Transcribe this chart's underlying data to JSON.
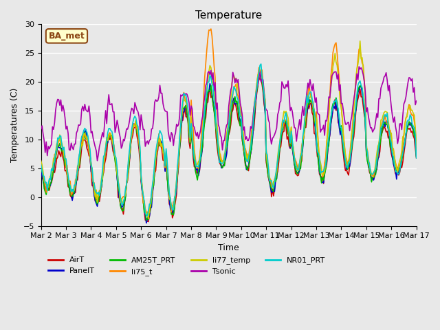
{
  "title": "Temperature",
  "ylabel": "Temperatures (C)",
  "xlabel": "Time",
  "ylim": [
    -5,
    30
  ],
  "xlim": [
    0,
    360
  ],
  "background_color": "#e8e8e8",
  "plot_bg_color": "#e8e8e8",
  "grid_color": "#ffffff",
  "annotation_text": "BA_met",
  "annotation_bg": "#ffffcc",
  "annotation_border": "#8B4513",
  "series": {
    "AirT": {
      "color": "#cc0000",
      "lw": 1.2
    },
    "PanelT": {
      "color": "#0000cc",
      "lw": 1.2
    },
    "AM25T_PRT": {
      "color": "#00bb00",
      "lw": 1.2
    },
    "li75_t": {
      "color": "#ff8800",
      "lw": 1.2
    },
    "li77_temp": {
      "color": "#cccc00",
      "lw": 1.2
    },
    "Tsonic": {
      "color": "#aa00aa",
      "lw": 1.2
    },
    "NR01_PRT": {
      "color": "#00cccc",
      "lw": 1.2
    }
  },
  "xtick_labels": [
    "Mar 2",
    "Mar 3",
    "Mar 4",
    "Mar 5",
    "Mar 6",
    "Mar 7",
    "Mar 8",
    "Mar 9",
    "Mar 10",
    "Mar 11",
    "Mar 12",
    "Mar 13",
    "Mar 14",
    "Mar 15",
    "Mar 16",
    "Mar 17"
  ],
  "xtick_positions": [
    0,
    24,
    48,
    72,
    96,
    120,
    144,
    168,
    192,
    216,
    240,
    264,
    288,
    312,
    336,
    360
  ],
  "ytick_positions": [
    -5,
    0,
    5,
    10,
    15,
    20,
    25,
    30
  ],
  "n_points": 361
}
